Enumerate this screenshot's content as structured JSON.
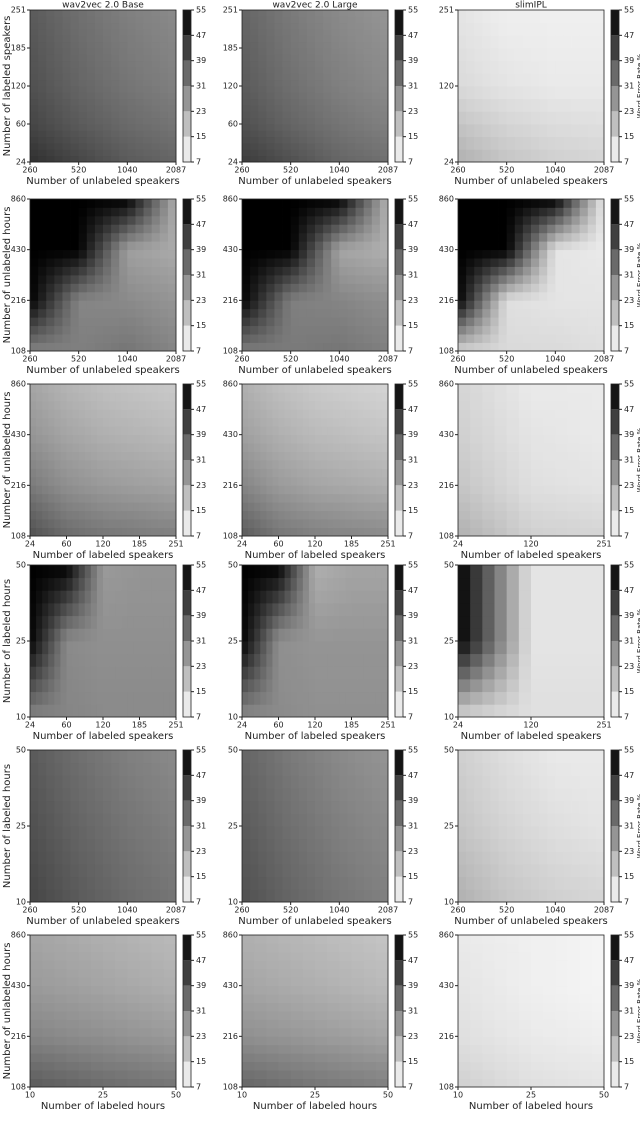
{
  "chart_data": [
    {
      "type": "contour",
      "title": "wav2vec 2.0 Base",
      "x_categories": [
        260,
        520,
        1040,
        2087
      ],
      "y_categories": [
        24,
        60,
        120,
        185,
        251
      ],
      "xlabel": "Number of unlabeled speakers",
      "ylabel": "Number of labeled speakers",
      "values": [
        [
          46,
          42,
          38,
          36
        ],
        [
          42,
          38,
          35,
          33
        ],
        [
          40,
          36,
          33,
          31
        ],
        [
          39,
          35,
          32,
          30
        ],
        [
          38,
          34,
          31,
          29
        ]
      ],
      "cmap": [
        "#ffffff",
        "#000000"
      ],
      "colorbar": {
        "lim": [
          7,
          55
        ],
        "ticks": [
          7,
          15,
          23,
          31,
          39,
          47,
          55
        ]
      }
    },
    {
      "type": "contour",
      "title": "wav2vec 2.0 Large",
      "x_categories": [
        260,
        520,
        1040,
        2087
      ],
      "y_categories": [
        24,
        60,
        120,
        185,
        251
      ],
      "xlabel": "Number of unlabeled speakers",
      "values": [
        [
          44,
          40,
          36,
          34
        ],
        [
          40,
          36,
          33,
          31
        ],
        [
          38,
          34,
          31,
          29
        ],
        [
          37,
          33,
          30,
          28
        ],
        [
          36,
          32,
          29,
          27
        ]
      ],
      "cmap": [
        "#ffffff",
        "#000000"
      ],
      "colorbar": {
        "lim": [
          7,
          55
        ],
        "ticks": [
          7,
          15,
          23,
          31,
          39,
          47,
          55
        ]
      }
    },
    {
      "type": "contour",
      "title": "slimIPL",
      "x_categories": [
        260,
        520,
        1040,
        2087
      ],
      "y_categories": [
        24,
        120,
        251
      ],
      "xlabel": "Number of unlabeled speakers",
      "colorbar_label": "Word Error Rate %",
      "values": [
        [
          22,
          18,
          16,
          15
        ],
        [
          14,
          12,
          11,
          11
        ],
        [
          12,
          10,
          10,
          10
        ]
      ],
      "cmap": [
        "#ffffff",
        "#000000"
      ],
      "colorbar": {
        "lim": [
          7,
          55
        ],
        "ticks": [
          7,
          15,
          23,
          31,
          39,
          47,
          55
        ]
      }
    },
    {
      "type": "contour",
      "x_categories": [
        260,
        520,
        1040,
        2087
      ],
      "y_categories": [
        108,
        216,
        430,
        860
      ],
      "xlabel": "Number of unlabeled speakers",
      "ylabel": "Number of unlabeled hours",
      "values": [
        [
          30,
          31,
          33,
          30
        ],
        [
          55,
          30,
          29,
          27
        ],
        [
          55,
          55,
          25,
          23
        ],
        [
          55,
          55,
          55,
          22
        ]
      ],
      "cmap": [
        "#ffffff",
        "#000000"
      ],
      "colorbar": {
        "lim": [
          7,
          55
        ],
        "ticks": [
          7,
          15,
          23,
          31,
          39,
          47,
          55
        ]
      }
    },
    {
      "type": "contour",
      "x_categories": [
        260,
        520,
        1040,
        2087
      ],
      "y_categories": [
        108,
        216,
        430,
        860
      ],
      "xlabel": "Number of unlabeled speakers",
      "values": [
        [
          31,
          32,
          33,
          31
        ],
        [
          55,
          31,
          30,
          28
        ],
        [
          55,
          55,
          24,
          22
        ],
        [
          55,
          55,
          55,
          21
        ]
      ],
      "cmap": [
        "#ffffff",
        "#000000"
      ],
      "colorbar": {
        "lim": [
          7,
          55
        ],
        "ticks": [
          7,
          15,
          23,
          31,
          39,
          47,
          55
        ]
      }
    },
    {
      "type": "contour",
      "x_categories": [
        260,
        520,
        1040,
        2087
      ],
      "y_categories": [
        108,
        216,
        430,
        860
      ],
      "xlabel": "Number of unlabeled speakers",
      "colorbar_label": "Word Error Rate %",
      "values": [
        [
          15,
          14,
          14,
          13
        ],
        [
          55,
          13,
          12,
          12
        ],
        [
          55,
          55,
          12,
          11
        ],
        [
          55,
          55,
          55,
          11
        ]
      ],
      "cmap": [
        "#ffffff",
        "#000000"
      ],
      "colorbar": {
        "lim": [
          7,
          55
        ],
        "ticks": [
          7,
          15,
          23,
          31,
          39,
          47,
          55
        ]
      }
    },
    {
      "type": "contour",
      "x_categories": [
        24,
        60,
        120,
        185,
        251
      ],
      "y_categories": [
        108,
        216,
        430,
        860
      ],
      "xlabel": "Number of labeled speakers",
      "ylabel": "Number of unlabeled hours",
      "values": [
        [
          40,
          35,
          33,
          32,
          31
        ],
        [
          32,
          28,
          26,
          25,
          24
        ],
        [
          27,
          24,
          22,
          21,
          20
        ],
        [
          24,
          21,
          19,
          18,
          17
        ]
      ],
      "cmap": [
        "#ffffff",
        "#000000"
      ],
      "colorbar": {
        "lim": [
          7,
          55
        ],
        "ticks": [
          7,
          15,
          23,
          31,
          39,
          47,
          55
        ]
      }
    },
    {
      "type": "contour",
      "x_categories": [
        24,
        60,
        120,
        185,
        251
      ],
      "y_categories": [
        108,
        216,
        430,
        860
      ],
      "xlabel": "Number of labeled speakers",
      "values": [
        [
          38,
          33,
          31,
          30,
          29
        ],
        [
          30,
          26,
          24,
          23,
          22
        ],
        [
          25,
          22,
          20,
          19,
          18
        ],
        [
          22,
          19,
          17,
          16,
          15
        ]
      ],
      "cmap": [
        "#ffffff",
        "#000000"
      ],
      "colorbar": {
        "lim": [
          7,
          55
        ],
        "ticks": [
          7,
          15,
          23,
          31,
          39,
          47,
          55
        ]
      }
    },
    {
      "type": "contour",
      "x_categories": [
        24,
        120,
        251
      ],
      "y_categories": [
        108,
        216,
        430,
        860
      ],
      "xlabel": "Number of labeled speakers",
      "colorbar_label": "Word Error Rate %",
      "values": [
        [
          22,
          16,
          15
        ],
        [
          18,
          13,
          12
        ],
        [
          16,
          12,
          11
        ],
        [
          15,
          11,
          11
        ]
      ],
      "cmap": [
        "#ffffff",
        "#000000"
      ],
      "colorbar": {
        "lim": [
          7,
          55
        ],
        "ticks": [
          7,
          15,
          23,
          31,
          39,
          47,
          55
        ]
      }
    },
    {
      "type": "contour",
      "x_categories": [
        24,
        60,
        120,
        185,
        251
      ],
      "y_categories": [
        10,
        25,
        50
      ],
      "xlabel": "Number of labeled speakers",
      "ylabel": "Number of labeled hours",
      "values": [
        [
          30,
          30,
          29,
          29,
          29
        ],
        [
          55,
          29,
          28,
          28,
          28
        ],
        [
          55,
          55,
          26,
          27,
          27
        ]
      ],
      "cmap": [
        "#ffffff",
        "#000000"
      ],
      "colorbar": {
        "lim": [
          7,
          55
        ],
        "ticks": [
          7,
          15,
          23,
          31,
          39,
          47,
          55
        ]
      }
    },
    {
      "type": "contour",
      "x_categories": [
        24,
        60,
        120,
        185,
        251
      ],
      "y_categories": [
        10,
        25,
        50
      ],
      "xlabel": "Number of labeled speakers",
      "values": [
        [
          29,
          29,
          28,
          28,
          28
        ],
        [
          55,
          28,
          27,
          27,
          27
        ],
        [
          55,
          55,
          22,
          24,
          24
        ]
      ],
      "cmap": [
        "#ffffff",
        "#000000"
      ],
      "colorbar": {
        "lim": [
          7,
          55
        ],
        "ticks": [
          7,
          15,
          23,
          31,
          39,
          47,
          55
        ]
      }
    },
    {
      "type": "contour",
      "x_categories": [
        24,
        120,
        251
      ],
      "y_categories": [
        10,
        25,
        50
      ],
      "xlabel": "Number of labeled speakers",
      "colorbar_label": "Word Error Rate %",
      "values": [
        [
          15,
          13,
          13
        ],
        [
          55,
          12,
          12
        ],
        [
          55,
          12,
          12
        ]
      ],
      "cmap": [
        "#ffffff",
        "#000000"
      ],
      "colorbar": {
        "lim": [
          7,
          55
        ],
        "ticks": [
          7,
          15,
          23,
          31,
          39,
          47,
          55
        ]
      }
    },
    {
      "type": "contour",
      "x_categories": [
        260,
        520,
        1040,
        2087
      ],
      "y_categories": [
        10,
        25,
        50
      ],
      "xlabel": "Number of unlabeled speakers",
      "ylabel": "Number of labeled hours",
      "values": [
        [
          42,
          38,
          35,
          33
        ],
        [
          40,
          36,
          33,
          31
        ],
        [
          38,
          34,
          31,
          29
        ]
      ],
      "cmap": [
        "#ffffff",
        "#000000"
      ],
      "colorbar": {
        "lim": [
          7,
          55
        ],
        "ticks": [
          7,
          15,
          23,
          31,
          39,
          47,
          55
        ]
      }
    },
    {
      "type": "contour",
      "x_categories": [
        260,
        520,
        1040,
        2087
      ],
      "y_categories": [
        10,
        25,
        50
      ],
      "xlabel": "Number of unlabeled speakers",
      "values": [
        [
          40,
          36,
          33,
          31
        ],
        [
          38,
          34,
          31,
          29
        ],
        [
          36,
          32,
          29,
          27
        ]
      ],
      "cmap": [
        "#ffffff",
        "#000000"
      ],
      "colorbar": {
        "lim": [
          7,
          55
        ],
        "ticks": [
          7,
          15,
          23,
          31,
          39,
          47,
          55
        ]
      }
    },
    {
      "type": "contour",
      "x_categories": [
        260,
        520,
        1040,
        2087
      ],
      "y_categories": [
        10,
        25,
        50
      ],
      "xlabel": "Number of unlabeled speakers",
      "colorbar_label": "Word Error Rate %",
      "values": [
        [
          22,
          18,
          16,
          15
        ],
        [
          18,
          15,
          13,
          12
        ],
        [
          16,
          13,
          11,
          11
        ]
      ],
      "cmap": [
        "#ffffff",
        "#000000"
      ],
      "colorbar": {
        "lim": [
          7,
          55
        ],
        "ticks": [
          7,
          15,
          23,
          31,
          39,
          47,
          55
        ]
      }
    },
    {
      "type": "contour",
      "x_categories": [
        10,
        25,
        50
      ],
      "y_categories": [
        108,
        216,
        430,
        860
      ],
      "xlabel": "Number of labeled hours",
      "ylabel": "Number of unlabeled hours",
      "values": [
        [
          38,
          35,
          33
        ],
        [
          30,
          28,
          26
        ],
        [
          26,
          24,
          22
        ],
        [
          24,
          22,
          20
        ]
      ],
      "cmap": [
        "#ffffff",
        "#000000"
      ],
      "colorbar": {
        "lim": [
          7,
          55
        ],
        "ticks": [
          7,
          15,
          23,
          31,
          39,
          47,
          55
        ]
      }
    },
    {
      "type": "contour",
      "x_categories": [
        10,
        25,
        50
      ],
      "y_categories": [
        108,
        216,
        430,
        860
      ],
      "xlabel": "Number of labeled hours",
      "values": [
        [
          36,
          33,
          31
        ],
        [
          28,
          26,
          24
        ],
        [
          24,
          22,
          20
        ],
        [
          22,
          20,
          18
        ]
      ],
      "cmap": [
        "#ffffff",
        "#000000"
      ],
      "colorbar": {
        "lim": [
          7,
          55
        ],
        "ticks": [
          7,
          15,
          23,
          31,
          39,
          47,
          55
        ]
      }
    },
    {
      "type": "contour",
      "x_categories": [
        10,
        25,
        50
      ],
      "y_categories": [
        108,
        216,
        430,
        860
      ],
      "xlabel": "Number of labeled hours",
      "colorbar_label": "Word Error Rate %",
      "values": [
        [
          16,
          13,
          12
        ],
        [
          13,
          11,
          10
        ],
        [
          12,
          10,
          9
        ],
        [
          11,
          10,
          9
        ]
      ],
      "cmap": [
        "#ffffff",
        "#000000"
      ],
      "colorbar": {
        "lim": [
          7,
          55
        ],
        "ticks": [
          7,
          15,
          23,
          31,
          39,
          47,
          55
        ]
      }
    }
  ]
}
